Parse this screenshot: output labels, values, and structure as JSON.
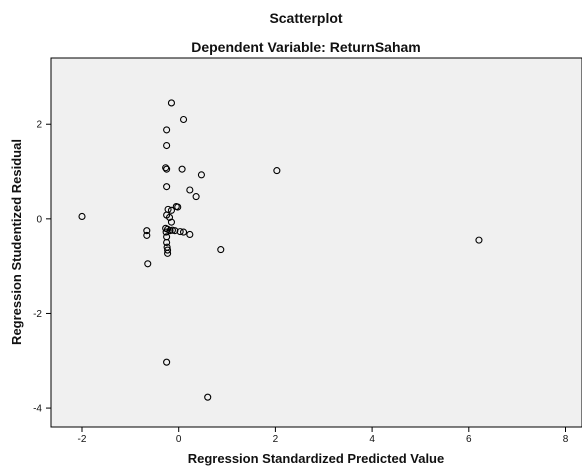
{
  "chart_data": {
    "type": "scatter",
    "title": "Scatterplot",
    "subtitle": "Dependent Variable: ReturnSaham",
    "xlabel": "Regression Standardized Predicted Value",
    "ylabel": "Regression Studentized Residual",
    "xlim": [
      -2.6,
      8.3
    ],
    "ylim": [
      -4.4,
      3.4
    ],
    "x_ticks": [
      -2,
      0,
      2,
      4,
      6,
      8
    ],
    "y_ticks": [
      -4,
      -2,
      0,
      2
    ],
    "grid": false,
    "colors": {
      "plot_background": "#f0f0f0",
      "marker": "#000000"
    },
    "points": [
      {
        "x": -2.0,
        "y": 0.05
      },
      {
        "x": -0.66,
        "y": -0.25
      },
      {
        "x": -0.66,
        "y": -0.35
      },
      {
        "x": -0.64,
        "y": -0.95
      },
      {
        "x": -0.15,
        "y": 2.45
      },
      {
        "x": 0.1,
        "y": 2.1
      },
      {
        "x": -0.25,
        "y": 1.88
      },
      {
        "x": -0.25,
        "y": 1.55
      },
      {
        "x": -0.27,
        "y": 1.08
      },
      {
        "x": -0.25,
        "y": 1.05
      },
      {
        "x": 0.07,
        "y": 1.05
      },
      {
        "x": 0.47,
        "y": 0.93
      },
      {
        "x": 2.03,
        "y": 1.02
      },
      {
        "x": -0.25,
        "y": 0.68
      },
      {
        "x": 0.23,
        "y": 0.61
      },
      {
        "x": 0.36,
        "y": 0.47
      },
      {
        "x": -0.05,
        "y": 0.26
      },
      {
        "x": -0.02,
        "y": 0.25
      },
      {
        "x": -0.22,
        "y": 0.2
      },
      {
        "x": -0.15,
        "y": 0.18
      },
      {
        "x": -0.25,
        "y": 0.08
      },
      {
        "x": -0.19,
        "y": 0.03
      },
      {
        "x": -0.15,
        "y": -0.07
      },
      {
        "x": -0.27,
        "y": -0.2
      },
      {
        "x": -0.23,
        "y": -0.22
      },
      {
        "x": -0.18,
        "y": -0.25
      },
      {
        "x": -0.13,
        "y": -0.24
      },
      {
        "x": -0.26,
        "y": -0.28
      },
      {
        "x": -0.08,
        "y": -0.25
      },
      {
        "x": 0.03,
        "y": -0.27
      },
      {
        "x": 0.1,
        "y": -0.28
      },
      {
        "x": 0.23,
        "y": -0.33
      },
      {
        "x": -0.25,
        "y": -0.38
      },
      {
        "x": -0.25,
        "y": -0.5
      },
      {
        "x": -0.24,
        "y": -0.6
      },
      {
        "x": -0.23,
        "y": -0.66
      },
      {
        "x": -0.23,
        "y": -0.73
      },
      {
        "x": 0.87,
        "y": -0.65
      },
      {
        "x": 6.21,
        "y": -0.45
      },
      {
        "x": -0.25,
        "y": -3.03
      },
      {
        "x": 0.6,
        "y": -3.77
      }
    ]
  }
}
